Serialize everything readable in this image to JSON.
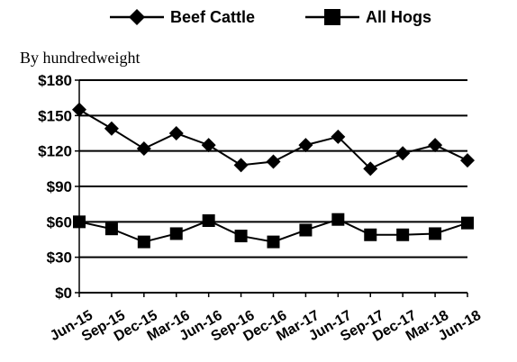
{
  "chart_data": {
    "type": "line",
    "unit_note": "By hundredweight",
    "categories": [
      "Jun-15",
      "Sep-15",
      "Dec-15",
      "Mar-16",
      "Jun-16",
      "Sep-16",
      "Dec-16",
      "Mar-17",
      "Jun-17",
      "Sep-17",
      "Dec-17",
      "Mar-18",
      "Jun-18"
    ],
    "ylim": [
      0,
      180
    ],
    "yticks": [
      0,
      30,
      60,
      90,
      120,
      150,
      180
    ],
    "ytick_labels": [
      "$0",
      "$30",
      "$60",
      "$90",
      "$120",
      "$150",
      "$180"
    ],
    "grid": true,
    "legend_position": "top",
    "series": [
      {
        "name": "Beef Cattle",
        "marker": "diamond",
        "color": "#000000",
        "values": [
          155,
          139,
          122,
          135,
          125,
          108,
          111,
          125,
          132,
          105,
          118,
          125,
          112
        ]
      },
      {
        "name": "All Hogs",
        "marker": "square",
        "color": "#000000",
        "values": [
          60,
          54,
          43,
          50,
          61,
          48,
          43,
          53,
          62,
          49,
          49,
          50,
          59
        ]
      }
    ]
  }
}
